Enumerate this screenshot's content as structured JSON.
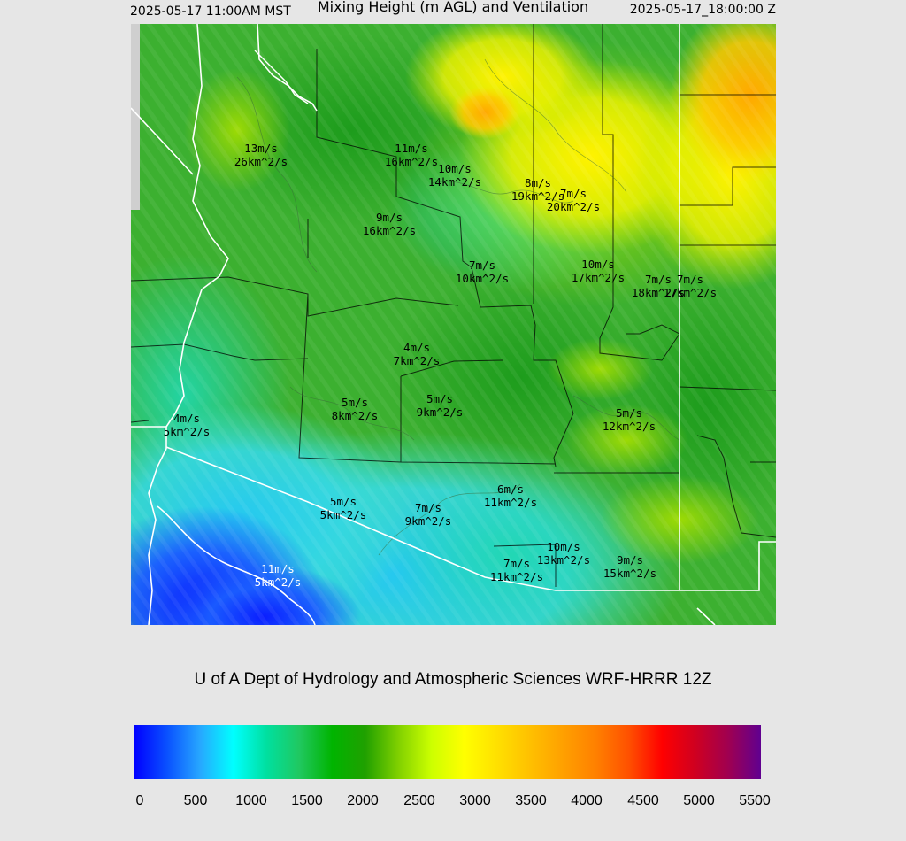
{
  "header": {
    "valid_local": "2025-05-17 11:00AM MST",
    "title": "Mixing Height (m AGL) and Ventilation",
    "valid_utc": "2025-05-17_18:00:00 Z"
  },
  "credit": "U of A Dept of Hydrology and Atmospheric Sciences WRF-HRRR 12Z",
  "map": {
    "labels": [
      {
        "wind": "13m/s",
        "vent": "26km^2/s",
        "color": "#000000"
      },
      {
        "wind": "11m/s",
        "vent": "16km^2/s",
        "color": "#000000"
      },
      {
        "wind": "10m/s",
        "vent": "14km^2/s",
        "color": "#000000"
      },
      {
        "wind": "8m/s",
        "vent": "19km^2/s",
        "color": "#000000"
      },
      {
        "wind": "7m/s",
        "vent": "20km^2/s",
        "color": "#000000"
      },
      {
        "wind": "9m/s",
        "vent": "16km^2/s",
        "color": "#000000"
      },
      {
        "wind": "7m/s",
        "vent": "10km^2/s",
        "color": "#000000"
      },
      {
        "wind": "10m/s",
        "vent": "17km^2/s",
        "color": "#000000"
      },
      {
        "wind": "7m/s",
        "vent": "18km^2/s",
        "color": "#000000"
      },
      {
        "wind": "7m/s",
        "vent": "17km^2/s",
        "color": "#000000"
      },
      {
        "wind": "4m/s",
        "vent": "7km^2/s",
        "color": "#000000"
      },
      {
        "wind": "5m/s",
        "vent": "8km^2/s",
        "color": "#000000"
      },
      {
        "wind": "5m/s",
        "vent": "9km^2/s",
        "color": "#000000"
      },
      {
        "wind": "4m/s",
        "vent": "5km^2/s",
        "color": "#000000"
      },
      {
        "wind": "5m/s",
        "vent": "12km^2/s",
        "color": "#000000"
      },
      {
        "wind": "6m/s",
        "vent": "11km^2/s",
        "color": "#000000"
      },
      {
        "wind": "5m/s",
        "vent": "5km^2/s",
        "color": "#000000"
      },
      {
        "wind": "7m/s",
        "vent": "9km^2/s",
        "color": "#000000"
      },
      {
        "wind": "10m/s",
        "vent": "13km^2/s",
        "color": "#000000"
      },
      {
        "wind": "7m/s",
        "vent": "11km^2/s",
        "color": "#000000"
      },
      {
        "wind": "9m/s",
        "vent": "15km^2/s",
        "color": "#000000"
      },
      {
        "wind": "11m/s",
        "vent": "5km^2/s",
        "color": "#ffffff"
      }
    ]
  },
  "colorbar": {
    "ticks": [
      "0",
      "500",
      "1000",
      "1500",
      "2000",
      "2500",
      "3000",
      "3500",
      "4000",
      "4500",
      "5000",
      "5500"
    ],
    "colors": [
      "#0000ff",
      "#0a52ff",
      "#27a8ff",
      "#00ffff",
      "#00e0a0",
      "#20c860",
      "#00b400",
      "#20a000",
      "#80d000",
      "#ccff00",
      "#ffff00",
      "#ffe000",
      "#ffc000",
      "#ffa000",
      "#ff8000",
      "#ff5000",
      "#ff0000",
      "#d00020",
      "#a00050",
      "#600090"
    ]
  }
}
